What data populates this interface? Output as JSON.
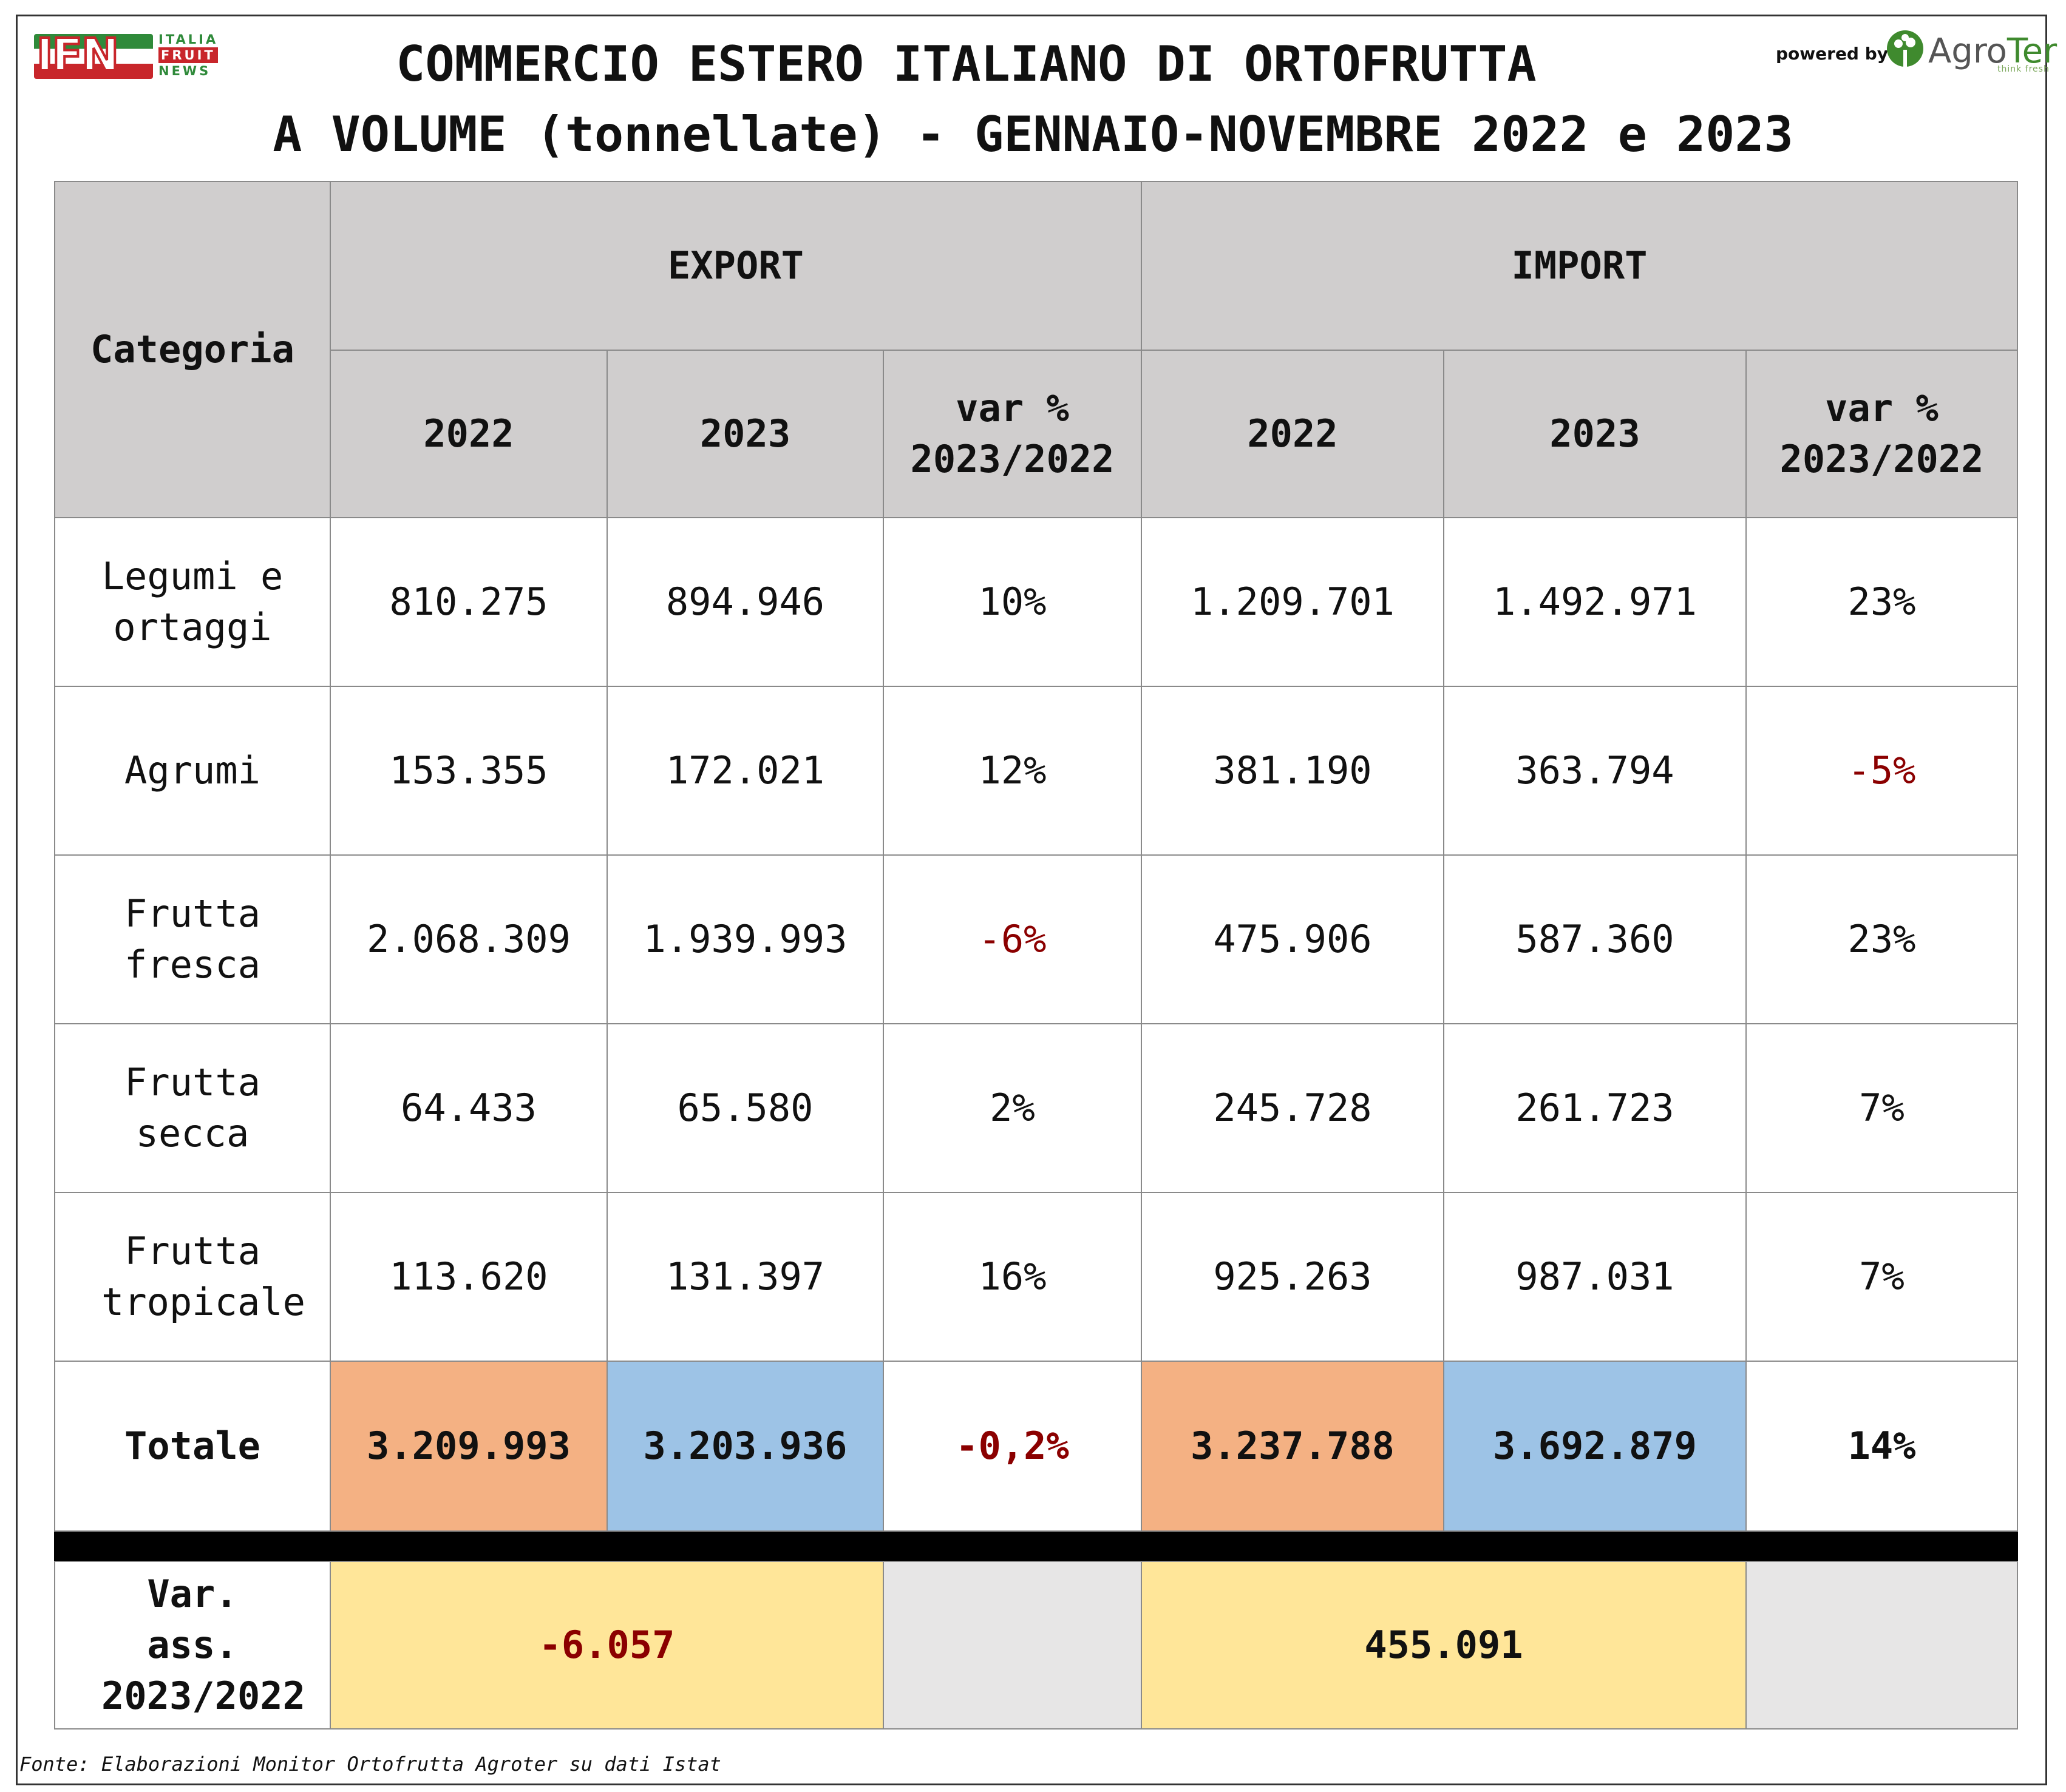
{
  "header": {
    "title_line1": "COMMERCIO ESTERO ITALIANO DI ORTOFRUTTA",
    "title_line2": "A VOLUME (tonnellate) - GENNAIO-NOVEMBRE 2022 e 2023",
    "logo_left": {
      "main": "IFN",
      "line1": "ITALIA",
      "line2": "FRUIT",
      "line3": "NEWS"
    },
    "powered_by": "powered by",
    "logo_right": {
      "name_a": "Agro",
      "name_b": "Ter",
      "tagline": "think fresh"
    }
  },
  "table": {
    "category_header": "Categoria",
    "export_header": "EXPORT",
    "import_header": "IMPORT",
    "sub_headers": {
      "y2022": "2022",
      "y2023": "2023",
      "var": "var % 2023/2022"
    },
    "rows": [
      {
        "category": "Legumi e ortaggi",
        "exp_2022": "810.275",
        "exp_2023": "894.946",
        "exp_var": "10%",
        "imp_2022": "1.209.701",
        "imp_2023": "1.492.971",
        "imp_var": "23%"
      },
      {
        "category": "Agrumi",
        "exp_2022": "153.355",
        "exp_2023": "172.021",
        "exp_var": "12%",
        "imp_2022": "381.190",
        "imp_2023": "363.794",
        "imp_var": "-5%"
      },
      {
        "category": "Frutta fresca",
        "exp_2022": "2.068.309",
        "exp_2023": "1.939.993",
        "exp_var": "-6%",
        "imp_2022": "475.906",
        "imp_2023": "587.360",
        "imp_var": "23%"
      },
      {
        "category": "Frutta secca",
        "exp_2022": "64.433",
        "exp_2023": "65.580",
        "exp_var": "2%",
        "imp_2022": "245.728",
        "imp_2023": "261.723",
        "imp_var": "7%"
      },
      {
        "category": "Frutta tropicale",
        "exp_2022": "113.620",
        "exp_2023": "131.397",
        "exp_var": "16%",
        "imp_2022": "925.263",
        "imp_2023": "987.031",
        "imp_var": "7%"
      }
    ],
    "total": {
      "category": "Totale",
      "exp_2022": "3.209.993",
      "exp_2023": "3.203.936",
      "exp_var": "-0,2%",
      "imp_2022": "3.237.788",
      "imp_2023": "3.692.879",
      "imp_var": "14%"
    },
    "abs_var": {
      "label": "Var. ass. 2023/2022",
      "export": "-6.057",
      "import": "455.091"
    }
  },
  "chart_data": {
    "type": "table",
    "title": "COMMERCIO ESTERO ITALIANO DI ORTOFRUTTA A VOLUME (tonnellate) - GENNAIO-NOVEMBRE 2022 e 2023",
    "columns": [
      "Categoria",
      "EXPORT 2022",
      "EXPORT 2023",
      "EXPORT var % 2023/2022",
      "IMPORT 2022",
      "IMPORT 2023",
      "IMPORT var % 2023/2022"
    ],
    "rows": [
      [
        "Legumi e ortaggi",
        810275,
        894946,
        10,
        1209701,
        1492971,
        23
      ],
      [
        "Agrumi",
        153355,
        172021,
        12,
        381190,
        363794,
        -5
      ],
      [
        "Frutta fresca",
        2068309,
        1939993,
        -6,
        475906,
        587360,
        23
      ],
      [
        "Frutta secca",
        64433,
        65580,
        2,
        245728,
        261723,
        7
      ],
      [
        "Frutta tropicale",
        113620,
        131397,
        16,
        925263,
        987031,
        7
      ],
      [
        "Totale",
        3209993,
        3203936,
        -0.2,
        3237788,
        3692879,
        14
      ]
    ],
    "absolute_variation": {
      "export": -6057,
      "import": 455091
    }
  },
  "colors": {
    "header_gray": "#d0cece",
    "orange": "#f4b183",
    "blue": "#9dc3e6",
    "yellow": "#ffe699",
    "light_gray": "#e7e6e6",
    "negative_red": "#8b0000"
  },
  "source": "Fonte: Elaborazioni Monitor Ortofrutta Agroter su dati Istat"
}
